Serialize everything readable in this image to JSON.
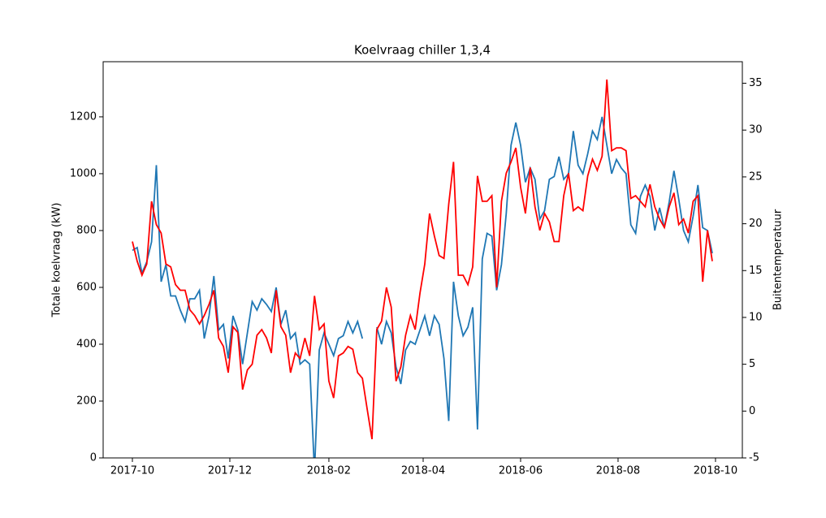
{
  "chart_data": {
    "type": "line",
    "title": "Koelvraag chiller 1,3,4",
    "ylabel": "Totale koelvraag (kW)",
    "y2label": "Buitentemperatuur",
    "x": [
      0,
      3,
      6,
      9,
      12,
      15,
      18,
      21,
      24,
      27,
      30,
      33,
      36,
      39,
      42,
      45,
      48,
      51,
      54,
      57,
      60,
      63,
      66,
      69,
      72,
      75,
      78,
      81,
      84,
      87,
      90,
      93,
      96,
      99,
      102,
      105,
      108,
      111,
      114,
      117,
      120,
      123,
      126,
      129,
      132,
      135,
      138,
      141,
      144,
      147,
      150,
      153,
      156,
      159,
      162,
      165,
      168,
      171,
      174,
      177,
      180,
      183,
      186,
      189,
      192,
      195,
      198,
      201,
      204,
      207,
      210,
      213,
      216,
      219,
      222,
      225,
      228,
      231,
      234,
      237,
      240,
      243,
      246,
      249,
      252,
      255,
      258,
      261,
      264,
      267,
      270,
      273,
      276,
      279,
      282,
      285,
      288,
      291,
      294,
      297,
      300,
      303,
      306,
      309,
      312,
      315,
      318,
      321,
      324,
      327,
      330,
      333,
      336,
      339,
      342,
      345,
      348,
      351,
      354,
      357,
      360,
      363
    ],
    "xlim": [
      -18.3,
      381.8
    ],
    "xticks": [
      {
        "value": 0,
        "label": "2017-10"
      },
      {
        "value": 61,
        "label": "2017-12"
      },
      {
        "value": 123,
        "label": "2018-02"
      },
      {
        "value": 182,
        "label": "2018-04"
      },
      {
        "value": 243,
        "label": "2018-06"
      },
      {
        "value": 304,
        "label": "2018-08"
      },
      {
        "value": 365,
        "label": "2018-10"
      }
    ],
    "ylim": [
      0,
      1394
    ],
    "yticks": [
      0,
      200,
      400,
      600,
      800,
      1000,
      1200
    ],
    "y2lim": [
      -5,
      37.3
    ],
    "y2ticks": [
      -5,
      0,
      5,
      10,
      15,
      20,
      25,
      30,
      35
    ],
    "series": [
      {
        "color": "#1f77b4",
        "values": [
          730,
          740,
          650,
          690,
          760,
          1030,
          620,
          680,
          570,
          570,
          520,
          480,
          560,
          560,
          590,
          420,
          500,
          640,
          450,
          470,
          350,
          500,
          450,
          330,
          440,
          550,
          520,
          560,
          540,
          515,
          600,
          470,
          520,
          420,
          440,
          330,
          345,
          330,
          -50,
          380,
          440,
          400,
          360,
          420,
          430,
          480,
          440,
          480,
          420,
          null,
          null,
          460,
          400,
          480,
          440,
          320,
          260,
          380,
          410,
          400,
          450,
          500,
          430,
          500,
          470,
          350,
          130,
          620,
          500,
          430,
          460,
          530,
          100,
          700,
          790,
          780,
          590,
          680,
          860,
          1100,
          1180,
          1100,
          970,
          1020,
          980,
          840,
          870,
          980,
          990,
          1060,
          980,
          1000,
          1150,
          1030,
          1000,
          1070,
          1150,
          1120,
          1200,
          1100,
          1000,
          1050,
          1020,
          1000,
          820,
          790,
          920,
          960,
          920,
          800,
          880,
          810,
          900,
          1010,
          910,
          800,
          760,
          850,
          960,
          810,
          800,
          720
        ]
      },
      {
        "color": "#ff0000",
        "axis": "y2",
        "values": [
          18.1,
          16.0,
          14.5,
          15.7,
          22.4,
          19.9,
          19.0,
          15.7,
          15.4,
          13.5,
          12.9,
          12.9,
          10.8,
          10.2,
          9.3,
          10.2,
          11.4,
          12.9,
          7.8,
          6.9,
          4.1,
          9.0,
          8.4,
          2.3,
          4.4,
          5.0,
          8.1,
          8.7,
          7.8,
          6.2,
          12.9,
          9.0,
          8.1,
          4.1,
          6.2,
          5.6,
          7.8,
          5.9,
          12.3,
          8.7,
          9.3,
          3.2,
          1.4,
          5.9,
          6.2,
          6.9,
          6.6,
          4.1,
          3.5,
          0.2,
          -3.0,
          8.7,
          9.6,
          13.2,
          11.1,
          3.2,
          4.7,
          8.1,
          10.2,
          8.7,
          12.6,
          15.7,
          21.1,
          18.7,
          16.6,
          16.3,
          22.1,
          26.6,
          14.5,
          14.5,
          13.5,
          15.4,
          25.1,
          22.4,
          22.4,
          23.0,
          13.2,
          22.4,
          25.4,
          26.6,
          28.1,
          23.9,
          21.1,
          26.0,
          21.8,
          19.3,
          21.1,
          20.2,
          18.1,
          18.1,
          23.0,
          25.4,
          21.4,
          21.8,
          21.4,
          25.1,
          26.9,
          25.7,
          27.2,
          35.4,
          27.8,
          28.1,
          28.1,
          27.8,
          22.7,
          23.0,
          22.4,
          21.8,
          24.2,
          21.8,
          20.5,
          19.6,
          21.8,
          23.3,
          19.9,
          20.5,
          19.0,
          22.4,
          23.0,
          13.8,
          19.3,
          16.0
        ]
      }
    ]
  }
}
